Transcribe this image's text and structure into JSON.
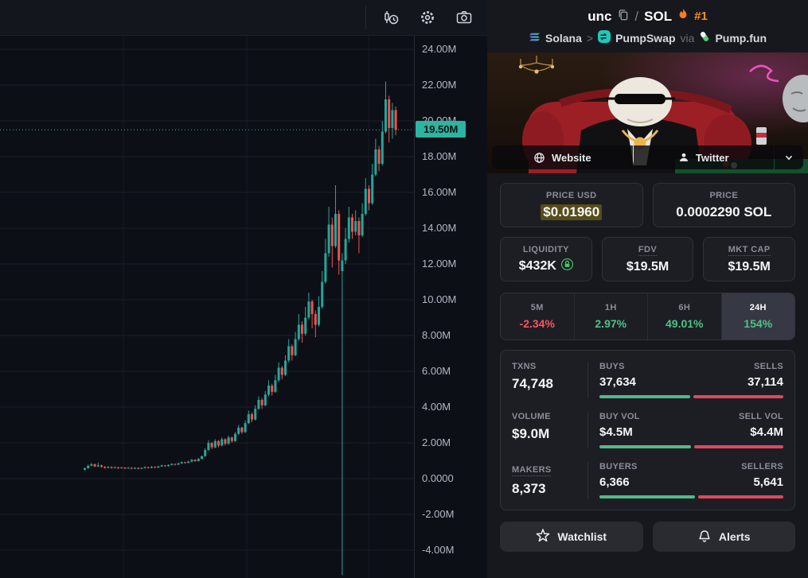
{
  "chart_data": {
    "type": "candlestick",
    "unit": "market cap (millions USD)",
    "current_price": 19.5,
    "current_price_label": "19.50M",
    "ylim": [
      -5.6,
      24.5
    ],
    "up_color": "#26a69a",
    "down_color": "#ef5350",
    "y_ticks": [
      {
        "label": "24.00M",
        "value": 24
      },
      {
        "label": "22.00M",
        "value": 22
      },
      {
        "label": "20.00M",
        "value": 20
      },
      {
        "label": "18.00M",
        "value": 18
      },
      {
        "label": "16.00M",
        "value": 16
      },
      {
        "label": "14.00M",
        "value": 14
      },
      {
        "label": "12.00M",
        "value": 12
      },
      {
        "label": "10.00M",
        "value": 10
      },
      {
        "label": "8.00M",
        "value": 8
      },
      {
        "label": "6.00M",
        "value": 6
      },
      {
        "label": "4.00M",
        "value": 4
      },
      {
        "label": "2.00M",
        "value": 2
      },
      {
        "label": "0.0000",
        "value": 0
      },
      {
        "label": "-2.00M",
        "value": -2
      },
      {
        "label": "-4.00M",
        "value": -4
      }
    ],
    "candles_ochl": [
      [
        0.5,
        0.58,
        0.62,
        0.46
      ],
      [
        0.58,
        0.72,
        0.78,
        0.56
      ],
      [
        0.72,
        0.8,
        0.88,
        0.7
      ],
      [
        0.8,
        0.68,
        0.84,
        0.64
      ],
      [
        0.68,
        0.74,
        0.9,
        0.66
      ],
      [
        0.74,
        0.66,
        0.78,
        0.62
      ],
      [
        0.66,
        0.6,
        0.7,
        0.56
      ],
      [
        0.6,
        0.65,
        0.7,
        0.58
      ],
      [
        0.65,
        0.6,
        0.68,
        0.55
      ],
      [
        0.6,
        0.63,
        0.68,
        0.58
      ],
      [
        0.63,
        0.58,
        0.66,
        0.54
      ],
      [
        0.58,
        0.62,
        0.66,
        0.56
      ],
      [
        0.62,
        0.57,
        0.64,
        0.53
      ],
      [
        0.57,
        0.61,
        0.65,
        0.55
      ],
      [
        0.61,
        0.56,
        0.63,
        0.52
      ],
      [
        0.56,
        0.6,
        0.64,
        0.54
      ],
      [
        0.6,
        0.55,
        0.62,
        0.52
      ],
      [
        0.55,
        0.59,
        0.63,
        0.53
      ],
      [
        0.59,
        0.64,
        0.68,
        0.57
      ],
      [
        0.64,
        0.6,
        0.66,
        0.56
      ],
      [
        0.6,
        0.66,
        0.7,
        0.58
      ],
      [
        0.66,
        0.62,
        0.68,
        0.58
      ],
      [
        0.62,
        0.68,
        0.72,
        0.6
      ],
      [
        0.68,
        0.74,
        0.78,
        0.66
      ],
      [
        0.74,
        0.7,
        0.76,
        0.66
      ],
      [
        0.7,
        0.76,
        0.8,
        0.68
      ],
      [
        0.76,
        0.82,
        0.86,
        0.74
      ],
      [
        0.82,
        0.78,
        0.84,
        0.74
      ],
      [
        0.78,
        0.85,
        0.9,
        0.76
      ],
      [
        0.85,
        0.92,
        0.96,
        0.82
      ],
      [
        0.92,
        0.88,
        0.94,
        0.84
      ],
      [
        0.88,
        0.95,
        1.0,
        0.86
      ],
      [
        0.95,
        1.05,
        1.1,
        0.92
      ],
      [
        1.05,
        0.98,
        1.08,
        0.94
      ],
      [
        0.98,
        1.1,
        1.15,
        0.96
      ],
      [
        1.1,
        1.25,
        1.3,
        1.08
      ],
      [
        1.25,
        1.6,
        1.7,
        1.22
      ],
      [
        1.6,
        2.0,
        2.15,
        1.55
      ],
      [
        2.0,
        1.75,
        2.05,
        1.65
      ],
      [
        1.75,
        2.1,
        2.2,
        1.7
      ],
      [
        2.1,
        1.85,
        2.15,
        1.75
      ],
      [
        1.85,
        2.2,
        2.3,
        1.8
      ],
      [
        2.2,
        1.95,
        2.25,
        1.85
      ],
      [
        1.95,
        2.3,
        2.4,
        1.9
      ],
      [
        2.3,
        2.1,
        2.35,
        2.0
      ],
      [
        2.1,
        2.5,
        2.6,
        2.05
      ],
      [
        2.5,
        2.85,
        3.0,
        2.45
      ],
      [
        2.85,
        2.6,
        2.9,
        2.5
      ],
      [
        2.6,
        3.1,
        3.25,
        2.55
      ],
      [
        3.1,
        3.6,
        3.8,
        3.05
      ],
      [
        3.6,
        3.3,
        3.7,
        3.15
      ],
      [
        3.3,
        3.9,
        4.1,
        3.25
      ],
      [
        3.9,
        4.4,
        4.6,
        3.85
      ],
      [
        4.4,
        4.1,
        4.5,
        3.9
      ],
      [
        4.1,
        4.7,
        4.9,
        4.05
      ],
      [
        4.7,
        5.2,
        5.5,
        4.6
      ],
      [
        5.2,
        4.85,
        5.3,
        4.65
      ],
      [
        4.85,
        5.5,
        5.8,
        4.8
      ],
      [
        5.5,
        6.2,
        6.5,
        5.4
      ],
      [
        6.2,
        5.8,
        6.3,
        5.55
      ],
      [
        5.8,
        6.6,
        6.9,
        5.75
      ],
      [
        6.6,
        7.4,
        7.8,
        6.5
      ],
      [
        7.4,
        6.9,
        7.5,
        6.6
      ],
      [
        6.9,
        7.8,
        8.2,
        6.85
      ],
      [
        7.8,
        8.6,
        9.2,
        7.7
      ],
      [
        8.6,
        8.1,
        8.8,
        7.6
      ],
      [
        8.1,
        9.0,
        9.6,
        8.0
      ],
      [
        9.0,
        9.9,
        10.4,
        8.9
      ],
      [
        9.9,
        9.2,
        10.0,
        8.4
      ],
      [
        9.2,
        8.6,
        9.4,
        7.9
      ],
      [
        8.6,
        9.6,
        10.2,
        8.5
      ],
      [
        9.6,
        11.0,
        11.6,
        9.5
      ],
      [
        11.0,
        12.6,
        13.4,
        10.9
      ],
      [
        12.6,
        14.2,
        15.2,
        12.4
      ],
      [
        14.2,
        13.0,
        14.6,
        11.8
      ],
      [
        13.0,
        14.8,
        16.4,
        12.9
      ],
      [
        14.8,
        12.2,
        15.0,
        11.4
      ],
      [
        11.6,
        12.2,
        12.6,
        -5.4
      ],
      [
        12.2,
        13.4,
        14.0,
        12.0
      ],
      [
        13.4,
        14.6,
        15.2,
        13.2
      ],
      [
        14.6,
        13.8,
        14.8,
        13.4
      ],
      [
        13.8,
        14.4,
        15.0,
        13.6
      ],
      [
        14.4,
        13.6,
        14.6,
        12.6
      ],
      [
        13.6,
        14.8,
        15.4,
        13.5
      ],
      [
        14.8,
        16.2,
        16.8,
        14.7
      ],
      [
        16.2,
        15.4,
        16.4,
        15.0
      ],
      [
        15.4,
        17.0,
        17.6,
        15.3
      ],
      [
        17.0,
        18.4,
        19.0,
        16.9
      ],
      [
        18.4,
        17.6,
        18.6,
        17.2
      ],
      [
        17.6,
        19.4,
        20.0,
        17.5
      ],
      [
        19.4,
        21.2,
        22.2,
        19.3
      ],
      [
        21.2,
        19.6,
        21.4,
        18.8
      ],
      [
        19.6,
        20.6,
        21.0,
        19.0
      ],
      [
        20.6,
        19.5,
        20.8,
        19.2
      ]
    ]
  },
  "pair": {
    "base": "unc",
    "separator": "/",
    "quote": "SOL",
    "rank": "#1",
    "chain": "Solana",
    "chevron": ">",
    "dex": "PumpSwap",
    "via_label": "via",
    "launchpad": "Pump.fun"
  },
  "links": {
    "website": "Website",
    "twitter": "Twitter"
  },
  "price": {
    "usd_label": "PRICE USD",
    "usd_value": "$0.01960",
    "native_label": "PRICE",
    "native_value": "0.0002290 SOL"
  },
  "metrics": {
    "liquidity_label": "LIQUIDITY",
    "liquidity_value": "$432K",
    "fdv_label": "FDV",
    "fdv_value": "$19.5M",
    "mktcap_label": "MKT CAP",
    "mktcap_value": "$19.5M"
  },
  "timeframes": [
    {
      "label": "5M",
      "value": "-2.34%",
      "direction": "neg",
      "active": false
    },
    {
      "label": "1H",
      "value": "2.97%",
      "direction": "pos",
      "active": false
    },
    {
      "label": "6H",
      "value": "49.01%",
      "direction": "pos",
      "active": false
    },
    {
      "label": "24H",
      "value": "154%",
      "direction": "pos",
      "active": true
    }
  ],
  "stats": {
    "rows": [
      {
        "left_label": "TXNS",
        "left_value": "74,748",
        "a_label": "BUYS",
        "a_value": "37,634",
        "b_label": "SELLS",
        "b_value": "37,114"
      },
      {
        "left_label": "VOLUME",
        "left_value": "$9.0M",
        "a_label": "BUY VOL",
        "a_value": "$4.5M",
        "b_label": "SELL VOL",
        "b_value": "$4.4M"
      },
      {
        "left_label": "MAKERS",
        "left_value": "8,373",
        "a_label": "BUYERS",
        "a_value": "6,366",
        "b_label": "SELLERS",
        "b_value": "5,641"
      }
    ]
  },
  "footer": {
    "watchlist": "Watchlist",
    "alerts": "Alerts"
  }
}
